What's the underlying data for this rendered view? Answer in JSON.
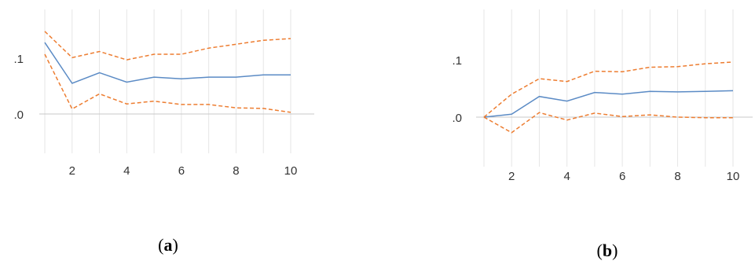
{
  "chart_data": [
    {
      "type": "line",
      "caption": "(a)",
      "caption_letter": "a",
      "x": [
        1,
        2,
        3,
        4,
        5,
        6,
        7,
        8,
        9,
        10
      ],
      "x_ticks": [
        2,
        4,
        6,
        8,
        10
      ],
      "y_ticks": [
        ".0",
        ".1"
      ],
      "y_tick_values": [
        0.0,
        0.1
      ],
      "xlim": [
        1,
        10
      ],
      "ylim": [
        -0.05,
        0.18
      ],
      "grid": true,
      "series": [
        {
          "role": "response",
          "color": "#5b8bc5",
          "style": "solid",
          "values": [
            0.128,
            0.055,
            0.074,
            0.057,
            0.066,
            0.063,
            0.066,
            0.066,
            0.07,
            0.07
          ]
        },
        {
          "role": "upper",
          "color": "#ed7d31",
          "style": "dashed",
          "values": [
            0.148,
            0.101,
            0.112,
            0.097,
            0.107,
            0.107,
            0.118,
            0.125,
            0.132,
            0.135
          ]
        },
        {
          "role": "lower",
          "color": "#ed7d31",
          "style": "dashed",
          "values": [
            0.107,
            0.009,
            0.036,
            0.018,
            0.023,
            0.017,
            0.017,
            0.011,
            0.01,
            0.003
          ]
        }
      ]
    },
    {
      "type": "line",
      "caption": "(b)",
      "caption_letter": "b",
      "x": [
        1,
        2,
        3,
        4,
        5,
        6,
        7,
        8,
        9,
        10
      ],
      "x_ticks": [
        2,
        4,
        6,
        8,
        10
      ],
      "y_ticks": [
        ".0",
        ".1"
      ],
      "y_tick_values": [
        0.0,
        0.1
      ],
      "xlim": [
        1,
        10
      ],
      "ylim": [
        -0.05,
        0.13
      ],
      "grid": true,
      "series": [
        {
          "role": "response",
          "color": "#5b8bc5",
          "style": "solid",
          "values": [
            0.0,
            0.005,
            0.036,
            0.028,
            0.043,
            0.04,
            0.045,
            0.044,
            0.045,
            0.046
          ]
        },
        {
          "role": "upper",
          "color": "#ed7d31",
          "style": "dashed",
          "values": [
            0.0,
            0.04,
            0.067,
            0.062,
            0.08,
            0.079,
            0.087,
            0.088,
            0.093,
            0.096
          ]
        },
        {
          "role": "lower",
          "color": "#ed7d31",
          "style": "dashed",
          "values": [
            0.0,
            -0.027,
            0.008,
            -0.005,
            0.007,
            0.001,
            0.004,
            0.0,
            -0.001,
            -0.001
          ]
        }
      ]
    }
  ]
}
